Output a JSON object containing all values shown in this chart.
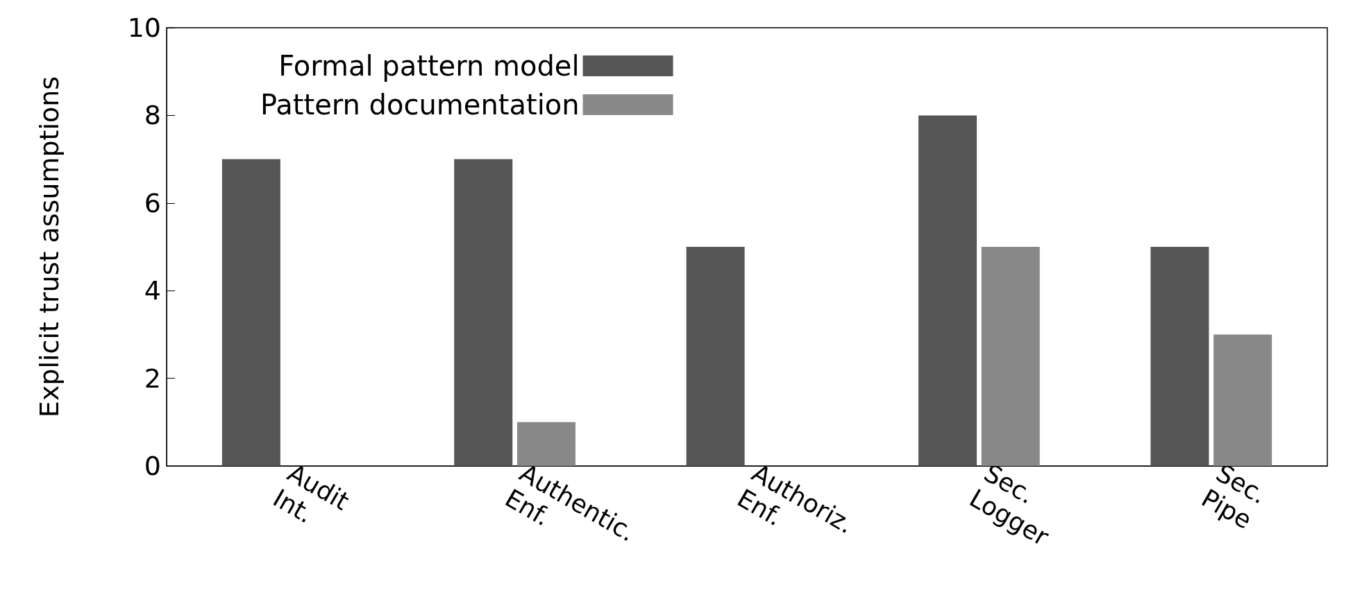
{
  "chart_data": {
    "type": "bar",
    "ylabel": "Explicit trust assumptions",
    "categories": [
      "Audit\nInt.",
      "Authentic.\nEnf.",
      "Authoriz.\nEnf.",
      "Sec.\nLogger",
      "Sec.\nPipe"
    ],
    "series": [
      {
        "name": "Formal pattern model",
        "color": "#555555",
        "values": [
          7,
          7,
          5,
          8,
          5
        ]
      },
      {
        "name": "Pattern documentation",
        "color": "#888888",
        "values": [
          0,
          1,
          0,
          5,
          3
        ]
      }
    ],
    "ylim": [
      0,
      10
    ],
    "yticks": [
      0,
      2,
      4,
      6,
      8,
      10
    ],
    "grid": false,
    "legend": "top left"
  }
}
